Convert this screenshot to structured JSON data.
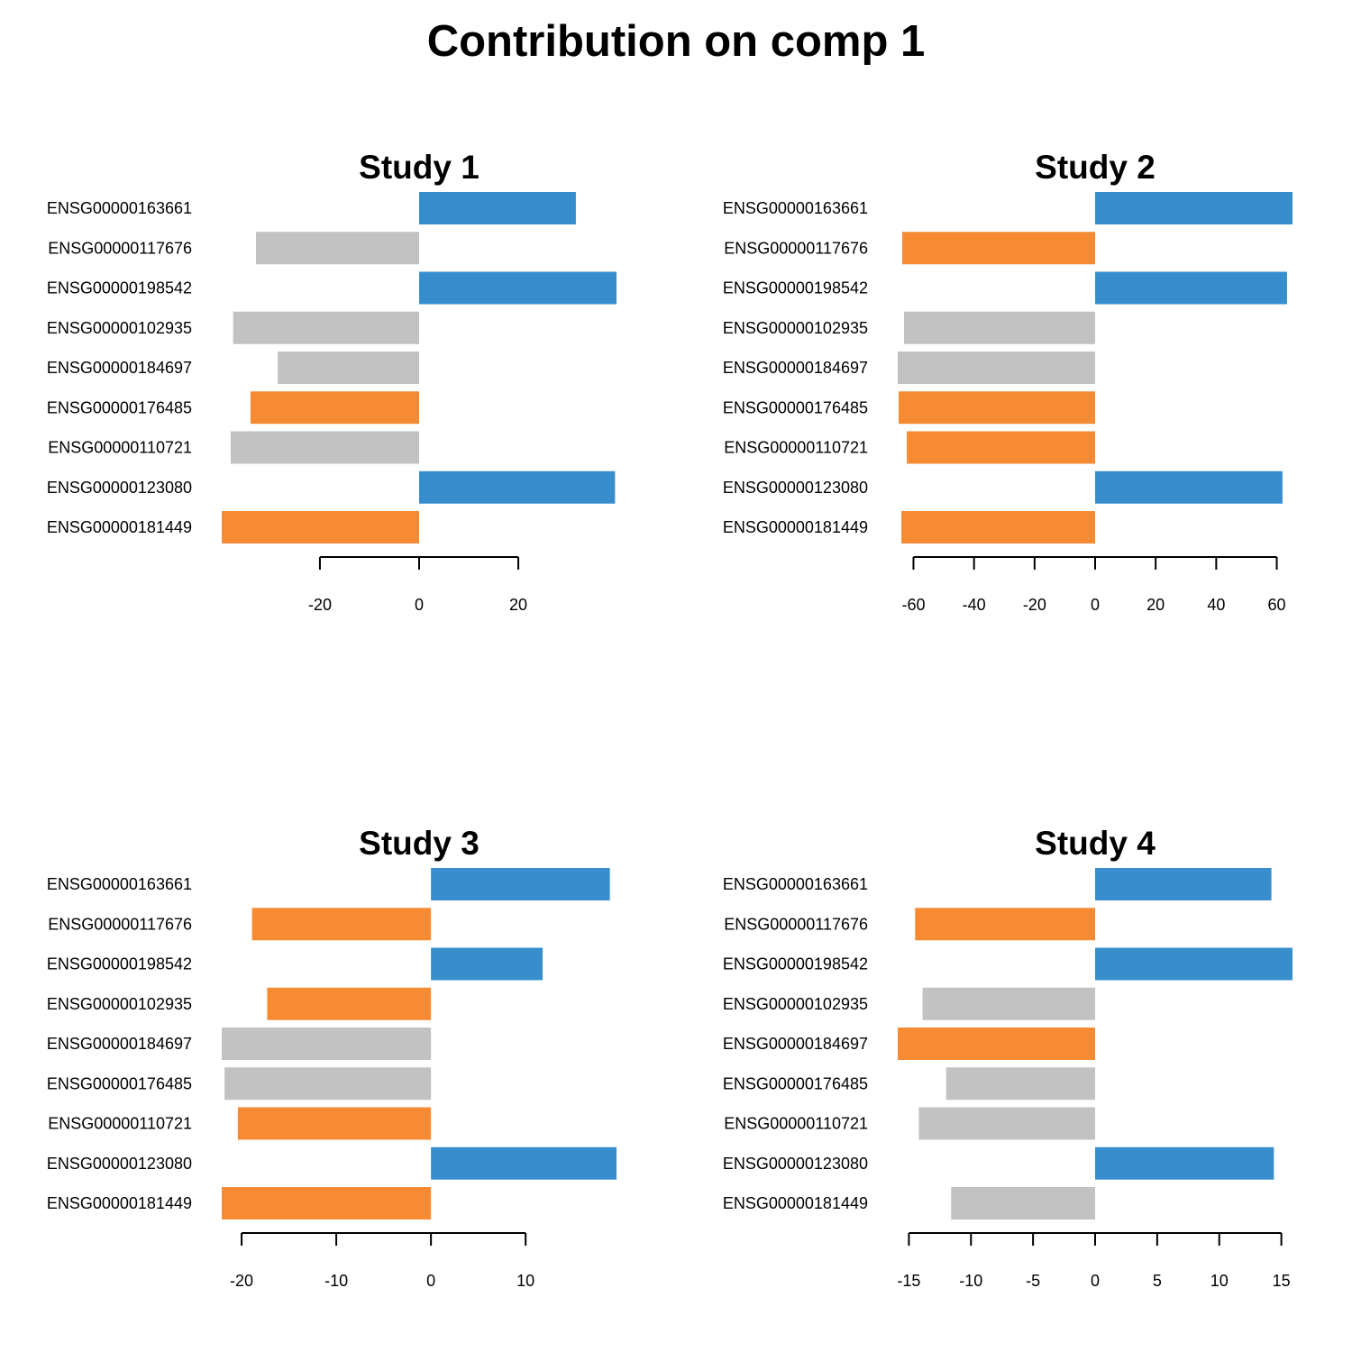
{
  "title": "Contribution on comp 1",
  "colors": {
    "positive": "#388ECC",
    "negative_group": "#F68B33",
    "other": "#C2C2C2"
  },
  "chart_data": [
    {
      "type": "bar",
      "orientation": "horizontal",
      "title": "Study 1",
      "categories": [
        "ENSG00000163661",
        "ENSG00000117676",
        "ENSG00000198542",
        "ENSG00000102935",
        "ENSG00000184697",
        "ENSG00000176485",
        "ENSG00000110721",
        "ENSG00000123080",
        "ENSG00000181449"
      ],
      "values": [
        31.6,
        -32.9,
        39.8,
        -37.5,
        -28.5,
        -34.0,
        -38.0,
        39.5,
        -39.8
      ],
      "colors": [
        "#388ECC",
        "#C2C2C2",
        "#388ECC",
        "#C2C2C2",
        "#C2C2C2",
        "#F68B33",
        "#C2C2C2",
        "#388ECC",
        "#F68B33"
      ],
      "xticks": [
        -20,
        0,
        20
      ],
      "xlim": [
        -39.8,
        39.8
      ]
    },
    {
      "type": "bar",
      "orientation": "horizontal",
      "title": "Study 2",
      "categories": [
        "ENSG00000163661",
        "ENSG00000117676",
        "ENSG00000198542",
        "ENSG00000102935",
        "ENSG00000184697",
        "ENSG00000176485",
        "ENSG00000110721",
        "ENSG00000123080",
        "ENSG00000181449"
      ],
      "values": [
        65.2,
        -63.7,
        63.4,
        -63.1,
        -65.2,
        -64.9,
        -62.2,
        61.9,
        -64.0
      ],
      "colors": [
        "#388ECC",
        "#F68B33",
        "#388ECC",
        "#C2C2C2",
        "#C2C2C2",
        "#F68B33",
        "#F68B33",
        "#388ECC",
        "#F68B33"
      ],
      "xticks": [
        -60,
        -40,
        -20,
        0,
        20,
        40,
        60
      ],
      "xlim": [
        -65.2,
        65.2
      ]
    },
    {
      "type": "bar",
      "orientation": "horizontal",
      "title": "Study 3",
      "categories": [
        "ENSG00000163661",
        "ENSG00000117676",
        "ENSG00000198542",
        "ENSG00000102935",
        "ENSG00000184697",
        "ENSG00000176485",
        "ENSG00000110721",
        "ENSG00000123080",
        "ENSG00000181449"
      ],
      "values": [
        18.9,
        -18.9,
        11.8,
        -17.3,
        -22.1,
        -21.8,
        -20.4,
        19.6,
        -22.1
      ],
      "colors": [
        "#388ECC",
        "#F68B33",
        "#388ECC",
        "#F68B33",
        "#C2C2C2",
        "#C2C2C2",
        "#F68B33",
        "#388ECC",
        "#F68B33"
      ],
      "xticks": [
        -20,
        -10,
        0,
        10
      ],
      "xlim": [
        -22.1,
        19.6
      ]
    },
    {
      "type": "bar",
      "orientation": "horizontal",
      "title": "Study 4",
      "categories": [
        "ENSG00000163661",
        "ENSG00000117676",
        "ENSG00000198542",
        "ENSG00000102935",
        "ENSG00000184697",
        "ENSG00000176485",
        "ENSG00000110721",
        "ENSG00000123080",
        "ENSG00000181449"
      ],
      "values": [
        14.2,
        -14.5,
        15.9,
        -13.9,
        -15.9,
        -12.0,
        -14.2,
        14.4,
        -11.6
      ],
      "colors": [
        "#388ECC",
        "#F68B33",
        "#388ECC",
        "#C2C2C2",
        "#F68B33",
        "#C2C2C2",
        "#C2C2C2",
        "#388ECC",
        "#C2C2C2"
      ],
      "xticks": [
        -15,
        -10,
        -5,
        0,
        5,
        10,
        15
      ],
      "xlim": [
        -15.9,
        15.9
      ]
    }
  ]
}
